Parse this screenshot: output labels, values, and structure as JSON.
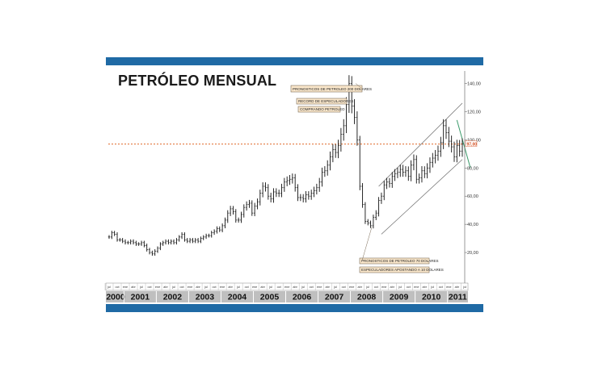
{
  "chart_data": {
    "type": "ohlc",
    "title": "PETRÓLEO MENSUAL",
    "ylim": [
      0,
      150
    ],
    "yticks": [
      "20,00",
      "40,00",
      "60,00",
      "80,00",
      "100,00",
      "120,00",
      "140,00"
    ],
    "ytick_values": [
      20,
      40,
      60,
      80,
      100,
      120,
      140
    ],
    "current_price_label": "97,00",
    "current_price": 97,
    "month_labels": [
      "jul",
      "oct",
      "ene",
      "abr"
    ],
    "years": [
      "2000",
      "2001",
      "2002",
      "2003",
      "2004",
      "2005",
      "2006",
      "2007",
      "2008",
      "2009",
      "2010",
      "2011"
    ],
    "start": {
      "year": 2000,
      "month": 7
    },
    "closes": [
      31,
      34,
      33,
      29,
      29,
      28,
      27,
      27,
      28,
      27,
      26,
      26,
      27,
      25,
      22,
      20,
      19,
      21,
      23,
      26,
      27,
      28,
      27,
      28,
      27,
      29,
      31,
      33,
      29,
      28,
      29,
      28,
      29,
      28,
      30,
      31,
      32,
      32,
      34,
      35,
      37,
      36,
      39,
      43,
      48,
      51,
      49,
      43,
      43,
      47,
      52,
      54,
      55,
      48,
      53,
      56,
      62,
      67,
      66,
      60,
      58,
      63,
      62,
      62,
      66,
      70,
      71,
      72,
      73,
      66,
      59,
      59,
      58,
      61,
      60,
      62,
      64,
      66,
      70,
      77,
      78,
      82,
      88,
      93,
      91,
      96,
      104,
      110,
      125,
      140,
      124,
      116,
      100,
      67,
      54,
      42,
      41,
      39,
      45,
      48,
      57,
      60,
      68,
      70,
      69,
      74,
      76,
      77,
      79,
      77,
      78,
      74,
      82,
      86,
      72,
      73,
      78,
      76,
      80,
      84,
      87,
      89,
      92,
      98,
      110,
      105,
      99,
      95,
      88,
      96,
      92,
      97
    ],
    "annotations": [
      {
        "text": "PRONOSTICOS DE PETROLEO 200 DOLARES"
      },
      {
        "text": "RECORD DE ESPECULADORES"
      },
      {
        "text": "COMPRANDO PETROLEO"
      },
      {
        "text": "PRONOSTICOS DE PETROLEO 70 DOLARES"
      },
      {
        "text": "ESPECULADORES APOSTANDO A 10 DOLARES"
      }
    ],
    "reference_line": {
      "value": 97,
      "color": "#e06a2a"
    },
    "channel_color": "#6a6a6a",
    "trend_color": "#3a9a6a",
    "bar_color": "#111111",
    "accent_color": "#1f6aa5"
  }
}
